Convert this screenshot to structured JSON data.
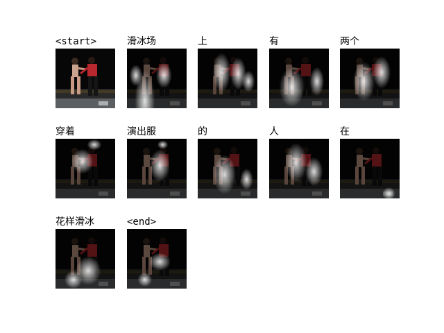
{
  "tokens": [
    {
      "text": "<start>",
      "attn": []
    },
    {
      "text": "滑冰场",
      "attn": [
        [
          0.3,
          0.88,
          0.28,
          0.85
        ],
        [
          0.62,
          0.45,
          0.22,
          0.35
        ],
        [
          0.15,
          0.45,
          0.18,
          0.3
        ]
      ]
    },
    {
      "text": "上",
      "attn": [
        [
          0.4,
          0.4,
          0.25,
          0.55
        ],
        [
          0.68,
          0.42,
          0.22,
          0.45
        ],
        [
          0.85,
          0.55,
          0.18,
          0.3
        ]
      ]
    },
    {
      "text": "有",
      "attn": [
        [
          0.38,
          0.65,
          0.35,
          0.55
        ],
        [
          0.8,
          0.55,
          0.2,
          0.4
        ]
      ]
    },
    {
      "text": "两个",
      "attn": [
        [
          0.4,
          0.55,
          0.3,
          0.55
        ],
        [
          0.7,
          0.4,
          0.25,
          0.45
        ]
      ]
    },
    {
      "text": "穿着",
      "attn": [
        [
          0.45,
          0.38,
          0.3,
          0.35
        ],
        [
          0.65,
          0.1,
          0.2,
          0.15
        ]
      ]
    },
    {
      "text": "演出服",
      "attn": [
        [
          0.55,
          0.45,
          0.28,
          0.45
        ],
        [
          0.6,
          0.1,
          0.15,
          0.12
        ]
      ]
    },
    {
      "text": "的",
      "attn": [
        [
          0.45,
          0.6,
          0.32,
          0.55
        ],
        [
          0.82,
          0.68,
          0.18,
          0.3
        ]
      ]
    },
    {
      "text": "人",
      "attn": [
        [
          0.45,
          0.4,
          0.3,
          0.55
        ],
        [
          0.75,
          0.55,
          0.25,
          0.4
        ]
      ]
    },
    {
      "text": "在",
      "attn": [
        [
          0.82,
          0.92,
          0.18,
          0.18
        ]
      ]
    },
    {
      "text": "花样滑冰",
      "attn": [
        [
          0.3,
          0.85,
          0.25,
          0.25
        ],
        [
          0.55,
          0.7,
          0.35,
          0.4
        ]
      ]
    },
    {
      "text": "<end>",
      "attn": [
        [
          0.3,
          0.85,
          0.2,
          0.2
        ],
        [
          0.55,
          0.55,
          0.3,
          0.25
        ]
      ]
    }
  ]
}
